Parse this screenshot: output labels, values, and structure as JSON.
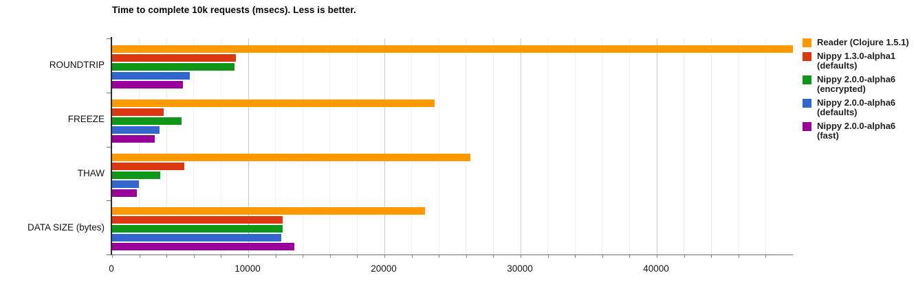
{
  "chart_data": {
    "type": "bar",
    "orientation": "horizontal",
    "title": "Time to complete 10k requests (msecs). Less is better.",
    "xlabel": "",
    "ylabel": "",
    "xlim": [
      0,
      50000
    ],
    "x_ticks": [
      0,
      10000,
      20000,
      30000,
      40000
    ],
    "x_tick_labels": [
      "0",
      "10000",
      "20000",
      "30000",
      "40000"
    ],
    "minor_grid_step": 2000,
    "grid": true,
    "legend_position": "right",
    "categories": [
      "ROUNDTRIP",
      "FREEZE",
      "THAW",
      "DATA SIZE (bytes)"
    ],
    "series": [
      {
        "name": "Reader (Clojure 1.5.1)",
        "legend_lines": [
          "Reader (Clojure 1.5.1)"
        ],
        "color": "#FF9900",
        "values": [
          50000,
          23700,
          26300,
          23000
        ]
      },
      {
        "name": "Nippy 1.3.0-alpha1 (defaults)",
        "legend_lines": [
          "Nippy 1.3.0-alpha1",
          "(defaults)"
        ],
        "color": "#DC3912",
        "values": [
          9100,
          3800,
          5300,
          12500
        ]
      },
      {
        "name": "Nippy 2.0.0-alpha6 (encrypted)",
        "legend_lines": [
          "Nippy 2.0.0-alpha6",
          "(encrypted)"
        ],
        "color": "#109618",
        "values": [
          9000,
          5100,
          3550,
          12500
        ]
      },
      {
        "name": "Nippy 2.0.0-alpha6 (defaults)",
        "legend_lines": [
          "Nippy 2.0.0-alpha6",
          "(defaults)"
        ],
        "color": "#3366CC",
        "values": [
          5700,
          3500,
          1950,
          12400
        ]
      },
      {
        "name": "Nippy 2.0.0-alpha6 (fast)",
        "legend_lines": [
          "Nippy 2.0.0-alpha6 (fast)"
        ],
        "color": "#990099",
        "values": [
          5200,
          3150,
          1800,
          13400
        ]
      }
    ],
    "colors": {
      "grid_minor": "#efefef",
      "grid_major": "#cccccc",
      "axis": "#2b2b2b",
      "text": "#121212"
    }
  }
}
